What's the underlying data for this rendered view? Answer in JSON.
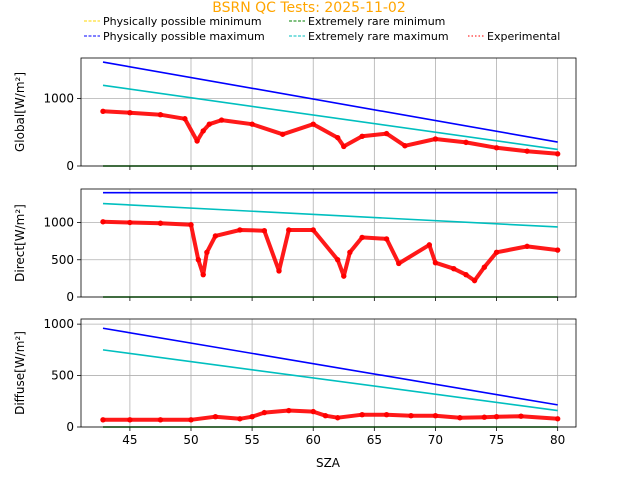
{
  "chart_data": {
    "type": "line",
    "title": "BSRN QC Tests: 2025-11-02",
    "xlabel": "SZA",
    "xlim": [
      41,
      81.5
    ],
    "xticks": [
      45,
      50,
      55,
      60,
      65,
      70,
      75,
      80
    ],
    "grid": true,
    "legend": {
      "placement": "top",
      "entries": [
        {
          "label": "Physically possible minimum",
          "color": "#ffd700",
          "style": "dashed"
        },
        {
          "label": "Extremely rare minimum",
          "color": "#008000",
          "style": "dashed"
        },
        {
          "label": "Physically possible maximum",
          "color": "#0000ff",
          "style": "dashed"
        },
        {
          "label": "Extremely rare maximum",
          "color": "#00bfbf",
          "style": "dashed"
        },
        {
          "label": "Experimental",
          "color": "#ff0000",
          "style": "dotted"
        }
      ]
    },
    "panels": [
      {
        "ylabel": "Global[W/m²]",
        "ylim": [
          0,
          1600
        ],
        "yticks": [
          0,
          1000
        ],
        "phys_max": {
          "x": [
            42.8,
            80
          ],
          "y": [
            1540,
            355
          ]
        },
        "rare_max": {
          "x": [
            42.8,
            80
          ],
          "y": [
            1195,
            245
          ]
        },
        "rare_min": {
          "x": [
            42.8,
            80
          ],
          "y": [
            0,
            0
          ]
        },
        "experimental": {
          "x": [
            42.8,
            45,
            47.5,
            49.5,
            50.5,
            51,
            51.5,
            52.5,
            55,
            57.5,
            60,
            62,
            62.5,
            64,
            66,
            67.5,
            70,
            72.5,
            75,
            77.5,
            80
          ],
          "y": [
            810,
            790,
            760,
            700,
            370,
            520,
            620,
            680,
            620,
            470,
            620,
            420,
            290,
            440,
            480,
            300,
            400,
            350,
            270,
            220,
            180
          ]
        }
      },
      {
        "ylabel": "Direct[W/m²]",
        "ylim": [
          0,
          1450
        ],
        "yticks": [
          0,
          500,
          1000
        ],
        "phys_max": {
          "x": [
            42.8,
            80
          ],
          "y": [
            1400,
            1400
          ]
        },
        "rare_max": {
          "x": [
            42.8,
            80
          ],
          "y": [
            1255,
            940
          ]
        },
        "rare_min": {
          "x": [
            42.8,
            80
          ],
          "y": [
            0,
            0
          ]
        },
        "experimental": {
          "x": [
            42.8,
            45,
            47.5,
            50,
            50.6,
            51,
            51.3,
            52,
            54,
            56,
            57.2,
            58,
            60,
            62,
            62.5,
            63,
            64,
            66,
            67,
            69.5,
            70,
            71.5,
            72.5,
            73.2,
            74,
            75,
            77.5,
            80
          ],
          "y": [
            1010,
            1000,
            990,
            970,
            500,
            300,
            600,
            820,
            900,
            890,
            350,
            900,
            900,
            500,
            280,
            600,
            800,
            780,
            450,
            700,
            460,
            380,
            300,
            220,
            400,
            600,
            680,
            630
          ]
        }
      },
      {
        "ylabel": "Diffuse[W/m²]",
        "ylim": [
          0,
          1050
        ],
        "yticks": [
          0,
          500,
          1000
        ],
        "phys_max": {
          "x": [
            42.8,
            80
          ],
          "y": [
            960,
            215
          ]
        },
        "rare_max": {
          "x": [
            42.8,
            80
          ],
          "y": [
            750,
            160
          ]
        },
        "rare_min": {
          "x": [
            42.8,
            80
          ],
          "y": [
            0,
            0
          ]
        },
        "experimental": {
          "x": [
            42.8,
            45,
            47.5,
            50,
            52,
            54,
            55,
            56,
            58,
            60,
            61,
            62,
            64,
            66,
            68,
            70,
            72,
            74,
            75,
            77,
            80
          ],
          "y": [
            70,
            70,
            70,
            70,
            100,
            80,
            100,
            140,
            160,
            150,
            110,
            90,
            120,
            120,
            110,
            110,
            90,
            95,
            100,
            105,
            80
          ]
        }
      }
    ]
  }
}
